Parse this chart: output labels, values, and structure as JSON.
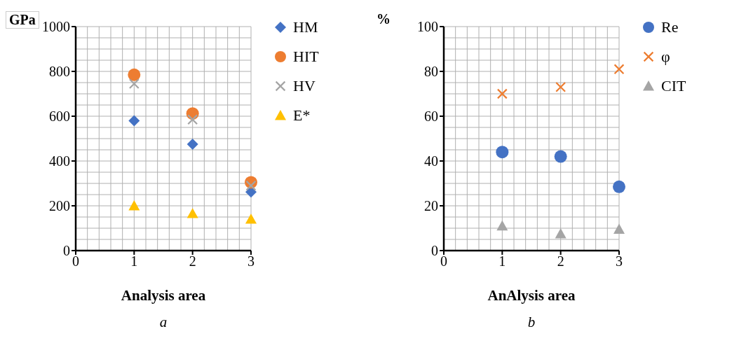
{
  "chart_data": [
    {
      "type": "scatter",
      "xlabel": "Analysis area",
      "ylabel": "GPa",
      "x": [
        1,
        2,
        3
      ],
      "xlim": [
        0,
        3
      ],
      "xticks": [
        0,
        1,
        2,
        3
      ],
      "ylim": [
        0,
        1000
      ],
      "yticks": [
        0,
        200,
        400,
        600,
        800,
        1000
      ],
      "grid": true,
      "legend": "right",
      "annotations": [
        "a"
      ],
      "series": [
        {
          "name": "HM",
          "color": "#4472c4",
          "marker": "diamond",
          "values": [
            580,
            475,
            262
          ]
        },
        {
          "name": "HIT",
          "color": "#ed7d31",
          "marker": "circle",
          "values": [
            785,
            612,
            305
          ]
        },
        {
          "name": "HV",
          "color": "#a5a5a5",
          "marker": "cross",
          "values": [
            745,
            585,
            290
          ]
        },
        {
          "name": "E*",
          "color": "#ffc000",
          "marker": "triangle",
          "values": [
            200,
            165,
            140
          ]
        }
      ]
    },
    {
      "type": "scatter",
      "xlabel": "AnAlysis area",
      "ylabel": "%",
      "x": [
        1,
        2,
        3
      ],
      "xlim": [
        0,
        3
      ],
      "xticks": [
        0,
        1,
        2,
        3
      ],
      "ylim": [
        0,
        100
      ],
      "yticks": [
        0,
        20,
        40,
        60,
        80,
        100
      ],
      "grid": true,
      "legend": "right",
      "annotations": [
        "b"
      ],
      "series": [
        {
          "name": "Re",
          "color": "#4472c4",
          "marker": "circle",
          "values": [
            44,
            42,
            28.5
          ]
        },
        {
          "name": "φ",
          "color": "#ed7d31",
          "marker": "cross",
          "values": [
            70,
            73,
            81
          ]
        },
        {
          "name": "CIT",
          "color": "#a5a5a5",
          "marker": "triangle",
          "values": [
            11,
            7.5,
            9.5
          ]
        }
      ]
    }
  ]
}
